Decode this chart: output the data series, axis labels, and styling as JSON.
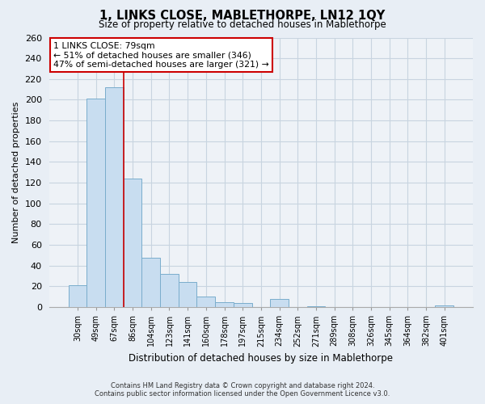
{
  "title": "1, LINKS CLOSE, MABLETHORPE, LN12 1QY",
  "subtitle": "Size of property relative to detached houses in Mablethorpe",
  "xlabel": "Distribution of detached houses by size in Mablethorpe",
  "ylabel": "Number of detached properties",
  "footer_line1": "Contains HM Land Registry data © Crown copyright and database right 2024.",
  "footer_line2": "Contains public sector information licensed under the Open Government Licence v3.0.",
  "bar_labels": [
    "30sqm",
    "49sqm",
    "67sqm",
    "86sqm",
    "104sqm",
    "123sqm",
    "141sqm",
    "160sqm",
    "178sqm",
    "197sqm",
    "215sqm",
    "234sqm",
    "252sqm",
    "271sqm",
    "289sqm",
    "308sqm",
    "326sqm",
    "345sqm",
    "364sqm",
    "382sqm",
    "401sqm"
  ],
  "bar_values": [
    21,
    201,
    212,
    124,
    48,
    32,
    24,
    10,
    5,
    4,
    0,
    8,
    0,
    1,
    0,
    0,
    0,
    0,
    0,
    0,
    2
  ],
  "bar_color": "#c8ddf0",
  "bar_edge_color": "#7aadcc",
  "ylim": [
    0,
    260
  ],
  "yticks": [
    0,
    20,
    40,
    60,
    80,
    100,
    120,
    140,
    160,
    180,
    200,
    220,
    240,
    260
  ],
  "property_line_x": 2.5,
  "property_line_color": "#cc0000",
  "annotation_title": "1 LINKS CLOSE: 79sqm",
  "annotation_line1": "← 51% of detached houses are smaller (346)",
  "annotation_line2": "47% of semi-detached houses are larger (321) →",
  "annotation_box_color": "#ffffff",
  "annotation_box_edge": "#cc0000",
  "background_color": "#e8eef5",
  "plot_bg_color": "#eef2f7",
  "grid_color": "#c8d4e0"
}
